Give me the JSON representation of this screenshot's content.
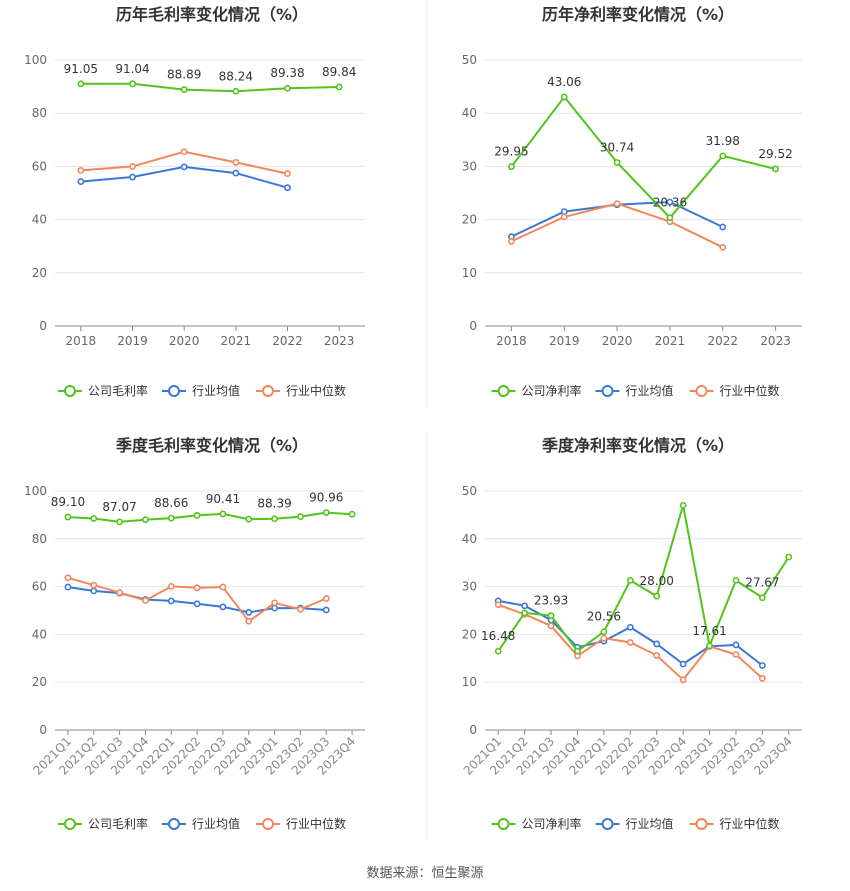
{
  "colors": {
    "company": "#52c41a",
    "industry_avg": "#3a78d8",
    "industry_median": "#f4875a",
    "grid": "#e3e3ee",
    "axis": "#888888",
    "title": "#333333"
  },
  "legend": {
    "gross_margin": "公司毛利率",
    "net_margin": "公司净利率",
    "industry_avg": "行业均值",
    "industry_median": "行业中位数"
  },
  "source_text": "数据来源：恒生聚源",
  "chart_data": [
    {
      "type": "line",
      "title": "历年毛利率变化情况（%）",
      "categories": [
        "2018",
        "2019",
        "2020",
        "2021",
        "2022",
        "2023"
      ],
      "ylim": [
        0,
        100
      ],
      "yticks": [
        0,
        20,
        40,
        60,
        80,
        100
      ],
      "grid": true,
      "legend_position": "bottom",
      "series": [
        {
          "name": "公司毛利率",
          "key": "company",
          "values": [
            91.05,
            91.04,
            88.89,
            88.24,
            89.38,
            89.84
          ],
          "labels": [
            "91.05",
            "91.04",
            "88.89",
            "88.24",
            "89.38",
            "89.84"
          ]
        },
        {
          "name": "行业均值",
          "key": "industry_avg",
          "values": [
            54.3,
            56.0,
            59.8,
            57.5,
            52.0,
            null
          ]
        },
        {
          "name": "行业中位数",
          "key": "industry_median",
          "values": [
            58.5,
            60.0,
            65.5,
            61.5,
            57.3,
            null
          ]
        }
      ]
    },
    {
      "type": "line",
      "title": "历年净利率变化情况（%）",
      "categories": [
        "2018",
        "2019",
        "2020",
        "2021",
        "2022",
        "2023"
      ],
      "ylim": [
        0,
        50
      ],
      "yticks": [
        0,
        10,
        20,
        30,
        40,
        50
      ],
      "grid": true,
      "legend_position": "bottom",
      "series": [
        {
          "name": "公司净利率",
          "key": "company",
          "values": [
            29.95,
            43.06,
            30.74,
            20.36,
            31.98,
            29.52
          ],
          "labels": [
            "29.95",
            "43.06",
            "30.74",
            "20.36",
            "31.98",
            "29.52"
          ]
        },
        {
          "name": "行业均值",
          "key": "industry_avg",
          "values": [
            16.8,
            21.5,
            22.8,
            23.3,
            18.6,
            null
          ]
        },
        {
          "name": "行业中位数",
          "key": "industry_median",
          "values": [
            15.9,
            20.5,
            23.0,
            19.6,
            14.8,
            null
          ]
        }
      ]
    },
    {
      "type": "line",
      "title": "季度毛利率变化情况（%）",
      "categories": [
        "2021Q1",
        "2021Q2",
        "2021Q3",
        "2021Q4",
        "2022Q1",
        "2022Q2",
        "2022Q3",
        "2022Q4",
        "2023Q1",
        "2023Q2",
        "2023Q3",
        "2023Q4"
      ],
      "ylim": [
        0,
        100
      ],
      "yticks": [
        0,
        20,
        40,
        60,
        80,
        100
      ],
      "grid": true,
      "legend_position": "bottom",
      "series": [
        {
          "name": "公司毛利率",
          "key": "company",
          "values": [
            89.1,
            88.5,
            87.07,
            88.0,
            88.66,
            89.8,
            90.41,
            88.2,
            88.39,
            89.3,
            90.96,
            90.3
          ],
          "labels": [
            "89.10",
            "",
            "87.07",
            "",
            "88.66",
            "",
            "90.41",
            "",
            "88.39",
            "",
            "90.96",
            ""
          ]
        },
        {
          "name": "行业均值",
          "key": "industry_avg",
          "values": [
            59.8,
            58.2,
            57.3,
            54.6,
            54.0,
            52.8,
            51.5,
            49.2,
            51.0,
            51.0,
            50.2,
            null
          ]
        },
        {
          "name": "行业中位数",
          "key": "industry_median",
          "values": [
            63.7,
            60.6,
            57.5,
            54.2,
            60.1,
            59.5,
            59.8,
            45.5,
            53.2,
            50.5,
            55.0,
            null
          ]
        }
      ]
    },
    {
      "type": "line",
      "title": "季度净利率变化情况（%）",
      "categories": [
        "2021Q1",
        "2021Q2",
        "2021Q3",
        "2021Q4",
        "2022Q1",
        "2022Q2",
        "2022Q3",
        "2022Q4",
        "2023Q1",
        "2023Q2",
        "2023Q3",
        "2023Q4"
      ],
      "ylim": [
        0,
        50
      ],
      "yticks": [
        0,
        10,
        20,
        30,
        40,
        50
      ],
      "grid": true,
      "legend_position": "bottom",
      "series": [
        {
          "name": "公司净利率",
          "key": "company",
          "values": [
            16.48,
            24.5,
            23.93,
            16.5,
            20.56,
            31.3,
            28.0,
            47.0,
            17.61,
            31.3,
            27.67,
            36.2
          ],
          "labels": [
            "16.48",
            "",
            "23.93",
            "",
            "20.56",
            "",
            "28.00",
            "",
            "17.61",
            "",
            "27.67",
            ""
          ]
        },
        {
          "name": "行业均值",
          "key": "industry_avg",
          "values": [
            27.0,
            26.0,
            23.0,
            17.3,
            18.6,
            21.5,
            18.0,
            13.8,
            17.5,
            17.8,
            13.5,
            null
          ]
        },
        {
          "name": "行业中位数",
          "key": "industry_median",
          "values": [
            26.2,
            24.2,
            21.8,
            15.5,
            19.2,
            18.3,
            15.6,
            10.5,
            17.5,
            15.8,
            10.8,
            null
          ]
        }
      ]
    }
  ]
}
